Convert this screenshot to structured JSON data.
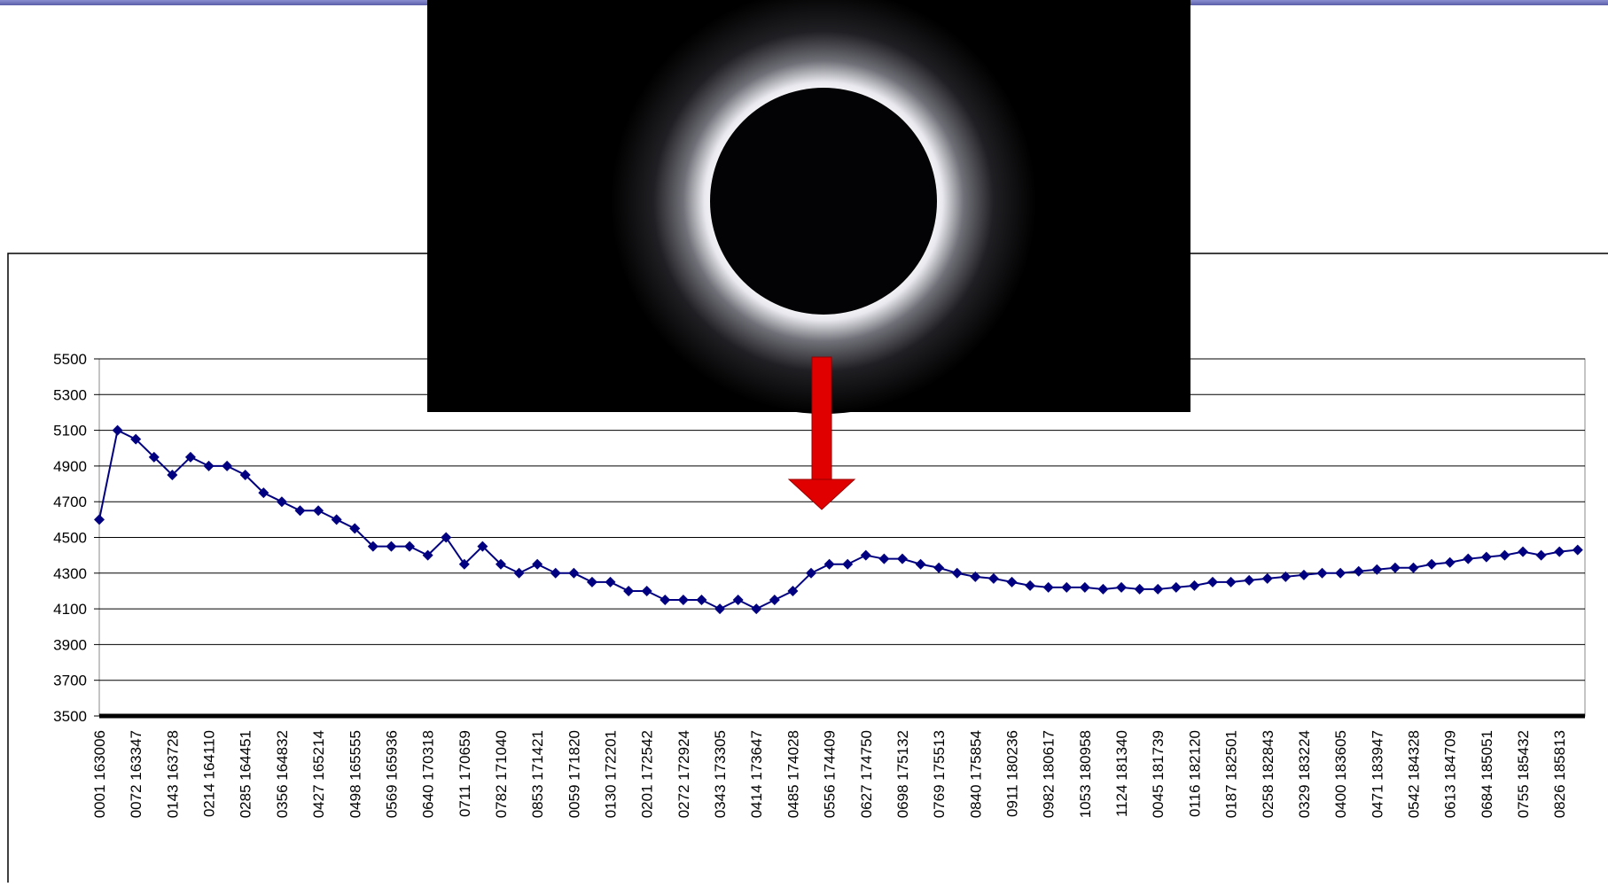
{
  "chart_data": {
    "type": "line",
    "color": "#000080",
    "categories": [
      "0001 163006",
      null,
      "0072 163347",
      null,
      "0143 163728",
      null,
      "0214 164110",
      null,
      "0285 164451",
      null,
      "0356 164832",
      null,
      "0427 165214",
      null,
      "0498 165555",
      null,
      "0569 165936",
      null,
      "0640 170318",
      null,
      "0711 170659",
      null,
      "0782 171040",
      null,
      "0853 171421",
      null,
      "0059 171820",
      null,
      "0130 172201",
      null,
      "0201 172542",
      null,
      "0272 172924",
      null,
      "0343 173305",
      null,
      "0414 173647",
      null,
      "0485 174028",
      null,
      "0556 174409",
      null,
      "0627 174750",
      null,
      "0698 175132",
      null,
      "0769 175513",
      null,
      "0840 175854",
      null,
      "0911 180236",
      null,
      "0982 180617",
      null,
      "1053 180958",
      null,
      "1124 181340",
      null,
      "0045 181739",
      null,
      "0116 182120",
      null,
      "0187 182501",
      null,
      "0258 182843",
      null,
      "0329 183224",
      null,
      "0400 183605",
      null,
      "0471 183947",
      null,
      "0542 184328",
      null,
      "0613 184709",
      null,
      "0684 185051",
      null,
      "0755 185432",
      null,
      "0826 185813",
      null
    ],
    "values": [
      4600,
      5100,
      5050,
      4950,
      4850,
      4950,
      4900,
      4900,
      4850,
      4750,
      4700,
      4650,
      4650,
      4600,
      4550,
      4450,
      4450,
      4450,
      4400,
      4500,
      4350,
      4450,
      4350,
      4300,
      4350,
      4300,
      4300,
      4250,
      4250,
      4200,
      4200,
      4150,
      4150,
      4150,
      4100,
      4150,
      4100,
      4150,
      4200,
      4300,
      4350,
      4350,
      4400,
      4380,
      4380,
      4350,
      4330,
      4300,
      4280,
      4270,
      4250,
      4230,
      4220,
      4220,
      4220,
      4210,
      4220,
      4210,
      4210,
      4220,
      4230,
      4250,
      4250,
      4260,
      4270,
      4280,
      4290,
      4300,
      4300,
      4310,
      4320,
      4330,
      4330,
      4350,
      4360,
      4380,
      4390,
      4400,
      4420,
      4400,
      4420,
      4430
    ],
    "ylim": [
      3500,
      5500
    ],
    "yticks": [
      3500,
      3700,
      3900,
      4100,
      4300,
      4500,
      4700,
      4900,
      5100,
      5300,
      5500
    ],
    "grid": true
  }
}
